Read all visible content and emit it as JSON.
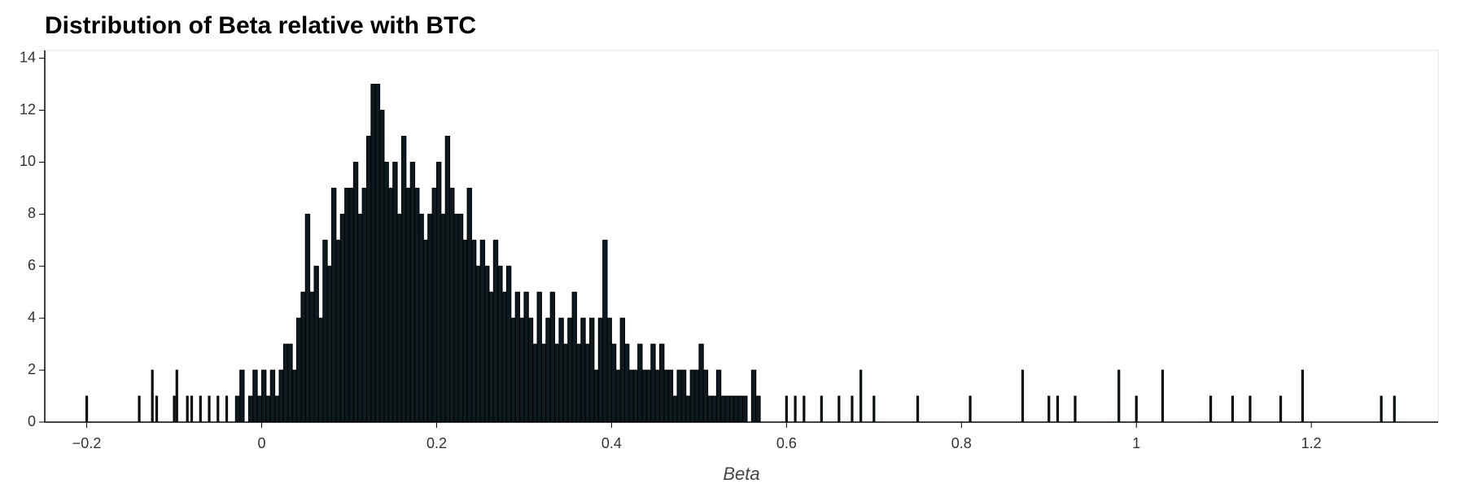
{
  "chart_data": {
    "type": "histogram",
    "title": "Distribution of Beta relative with BTC",
    "x_label": "Beta",
    "color": "#0d1a1f",
    "bins": [
      -0.25,
      -0.201,
      -0.199,
      -0.141,
      -0.139,
      -0.126,
      -0.124,
      -0.121,
      -0.119,
      -0.101,
      -0.099,
      -0.098,
      -0.096,
      -0.086,
      -0.084,
      -0.081,
      -0.079,
      -0.071,
      -0.069,
      -0.061,
      -0.059,
      -0.051,
      -0.049,
      -0.041,
      -0.039,
      -0.03,
      -0.025,
      -0.02,
      -0.015,
      -0.01,
      -0.005,
      0,
      0.005,
      0.01,
      0.015,
      0.02,
      0.025,
      0.03,
      0.035,
      0.04,
      0.045,
      0.05,
      0.055,
      0.06,
      0.065,
      0.07,
      0.075,
      0.08,
      0.085,
      0.09,
      0.095,
      0.1,
      0.105,
      0.11,
      0.115,
      0.12,
      0.125,
      0.13,
      0.135,
      0.14,
      0.145,
      0.15,
      0.155,
      0.16,
      0.165,
      0.17,
      0.175,
      0.18,
      0.185,
      0.19,
      0.195,
      0.2,
      0.205,
      0.21,
      0.215,
      0.22,
      0.225,
      0.23,
      0.235,
      0.24,
      0.245,
      0.25,
      0.255,
      0.26,
      0.265,
      0.27,
      0.275,
      0.28,
      0.285,
      0.29,
      0.295,
      0.3,
      0.305,
      0.31,
      0.315,
      0.32,
      0.325,
      0.33,
      0.335,
      0.34,
      0.345,
      0.35,
      0.355,
      0.36,
      0.365,
      0.37,
      0.375,
      0.38,
      0.385,
      0.39,
      0.395,
      0.4,
      0.405,
      0.41,
      0.415,
      0.42,
      0.425,
      0.43,
      0.435,
      0.44,
      0.445,
      0.45,
      0.455,
      0.46,
      0.465,
      0.47,
      0.475,
      0.48,
      0.485,
      0.49,
      0.495,
      0.5,
      0.505,
      0.51,
      0.515,
      0.52,
      0.525,
      0.53,
      0.535,
      0.54,
      0.545,
      0.55,
      0.555,
      0.56,
      0.565,
      0.57,
      0.599,
      0.601,
      0.609,
      0.611,
      0.619,
      0.621,
      0.639,
      0.641,
      0.659,
      0.661,
      0.674,
      0.676,
      0.684,
      0.686,
      0.699,
      0.701,
      0.749,
      0.751,
      0.809,
      0.811,
      0.869,
      0.871,
      0.899,
      0.901,
      0.909,
      0.911,
      0.929,
      0.931,
      0.979,
      0.981,
      0.999,
      1.001,
      1.029,
      1.031,
      1.084,
      1.086,
      1.109,
      1.111,
      1.129,
      1.131,
      1.164,
      1.166,
      1.189,
      1.191,
      1.279,
      1.281,
      1.294,
      1.296,
      1.345
    ],
    "values": [
      0,
      1,
      0,
      1,
      0,
      2,
      0,
      1,
      0,
      1,
      0,
      2,
      0,
      1,
      0,
      1,
      0,
      1,
      0,
      1,
      0,
      1,
      0,
      1,
      0,
      1,
      2,
      0,
      1,
      2,
      1,
      2,
      1,
      2,
      1,
      2,
      3,
      3,
      2,
      4,
      5,
      8,
      5,
      6,
      4,
      7,
      6,
      9,
      7,
      8,
      9,
      9,
      10,
      8,
      9,
      11,
      13,
      13,
      12,
      10,
      9,
      10,
      8,
      11,
      9,
      10,
      9,
      8,
      7,
      8,
      9,
      10,
      8,
      11,
      9,
      8,
      8,
      7,
      9,
      7,
      6,
      7,
      6,
      5,
      7,
      6,
      5,
      6,
      4,
      5,
      4,
      5,
      4,
      3,
      5,
      3,
      4,
      5,
      3,
      4,
      3,
      4,
      5,
      3,
      4,
      3,
      4,
      2,
      4,
      7,
      4,
      3,
      2,
      4,
      3,
      2,
      2,
      3,
      2,
      2,
      3,
      2,
      3,
      2,
      2,
      1,
      2,
      2,
      1,
      2,
      2,
      3,
      2,
      1,
      1,
      2,
      1,
      1,
      1,
      1,
      1,
      1,
      0,
      2,
      1,
      0,
      1,
      0,
      1,
      0,
      1,
      0,
      1,
      0,
      1,
      0,
      1,
      0,
      2,
      0,
      1,
      0,
      1,
      0,
      1,
      0,
      2,
      0,
      1,
      0,
      1,
      0,
      1,
      0,
      2,
      0,
      1,
      0,
      2,
      0,
      1,
      0,
      1,
      0,
      1,
      0,
      1,
      0,
      2,
      0,
      1,
      0,
      1,
      0
    ],
    "xlim": [
      -0.248,
      1.345
    ],
    "xticks": [
      {
        "value": -0.2,
        "label": "−0.2"
      },
      0,
      0.2,
      0.4,
      0.6,
      0.8,
      1,
      1.2
    ],
    "ylim": [
      0,
      14.3
    ],
    "yticks": [
      0,
      2,
      4,
      6,
      8,
      10,
      12,
      14
    ]
  }
}
